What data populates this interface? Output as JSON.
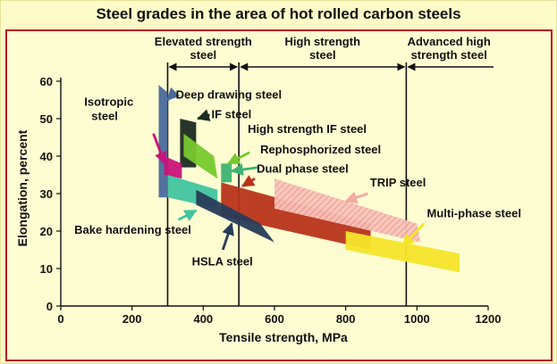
{
  "chart_data": {
    "type": "area",
    "title": "Steel grades in the area of hot rolled carbon steels",
    "xlabel": "Tensile strength, MPa",
    "ylabel": "Elongation, percent",
    "xlim": [
      0,
      1200
    ],
    "ylim": [
      0,
      60
    ],
    "xticks": [
      0,
      200,
      400,
      600,
      800,
      1000,
      1200
    ],
    "yticks": [
      0,
      10,
      20,
      30,
      40,
      50,
      60
    ],
    "regions": [
      {
        "name": "Elevated strength steel",
        "from": 300,
        "to": 500
      },
      {
        "name": "High strength steel",
        "from": 500,
        "to": 970
      },
      {
        "name": "Advanced high strength steel",
        "from": 970,
        "to": 1200
      }
    ],
    "grades": [
      {
        "name": "Deep drawing steel",
        "color": "#4a6a9c",
        "polygon": [
          [
            275,
            59
          ],
          [
            300,
            57
          ],
          [
            300,
            29
          ],
          [
            275,
            29
          ]
        ]
      },
      {
        "name": "IF steel",
        "color": "#1c2a22",
        "polygon": [
          [
            335,
            50
          ],
          [
            380,
            49
          ],
          [
            380,
            37
          ],
          [
            335,
            37
          ]
        ]
      },
      {
        "name": "High strength IF steel",
        "color": "#77c92d",
        "polygon": [
          [
            345,
            46
          ],
          [
            430,
            40
          ],
          [
            440,
            34
          ],
          [
            345,
            40
          ]
        ]
      },
      {
        "name": "Rephosphorized steel",
        "color": "#3cb372",
        "polygon": [
          [
            450,
            38
          ],
          [
            480,
            38
          ],
          [
            480,
            33
          ],
          [
            450,
            33
          ]
        ]
      },
      {
        "name": "Isotropic steel",
        "color": "#c8147a",
        "polygon": [
          [
            290,
            40
          ],
          [
            340,
            38
          ],
          [
            340,
            34
          ],
          [
            290,
            35
          ]
        ]
      },
      {
        "name": "Dual phase steel",
        "color": "#b8341b",
        "polygon": [
          [
            450,
            33
          ],
          [
            870,
            22
          ],
          [
            870,
            15
          ],
          [
            450,
            24
          ]
        ]
      },
      {
        "name": "TRIP steel",
        "color": "#f4aaa0",
        "polygon": [
          [
            600,
            34
          ],
          [
            1000,
            22
          ],
          [
            1010,
            17
          ],
          [
            600,
            26
          ]
        ]
      },
      {
        "name": "Multi-phase steel",
        "color": "#f5e52a",
        "polygon": [
          [
            800,
            20
          ],
          [
            1120,
            14
          ],
          [
            1120,
            9
          ],
          [
            800,
            15
          ]
        ]
      },
      {
        "name": "Bake hardening steel",
        "color": "#41c4a0",
        "polygon": [
          [
            300,
            35
          ],
          [
            440,
            31
          ],
          [
            440,
            26
          ],
          [
            300,
            29
          ]
        ]
      },
      {
        "name": "HSLA steel",
        "color": "#283c5a",
        "polygon": [
          [
            380,
            31
          ],
          [
            560,
            22
          ],
          [
            600,
            17
          ],
          [
            380,
            27
          ]
        ]
      }
    ],
    "annotations": [
      {
        "text": "Deep drawing steel",
        "points_to": "Deep drawing steel"
      },
      {
        "text": "IF steel",
        "points_to": "IF steel"
      },
      {
        "text": "Isotropic steel",
        "points_to": "Isotropic steel"
      },
      {
        "text": "High strength IF steel",
        "points_to": "High strength IF steel"
      },
      {
        "text": "Rephosphorized steel",
        "points_to": "Rephosphorized steel"
      },
      {
        "text": "Dual phase steel",
        "points_to": "Dual phase steel"
      },
      {
        "text": "TRIP steel",
        "points_to": "TRIP steel"
      },
      {
        "text": "Multi-phase steel",
        "points_to": "Multi-phase steel"
      },
      {
        "text": "Bake hardening steel",
        "points_to": "Bake hardening steel"
      },
      {
        "text": "HSLA steel",
        "points_to": "HSLA steel"
      }
    ]
  }
}
